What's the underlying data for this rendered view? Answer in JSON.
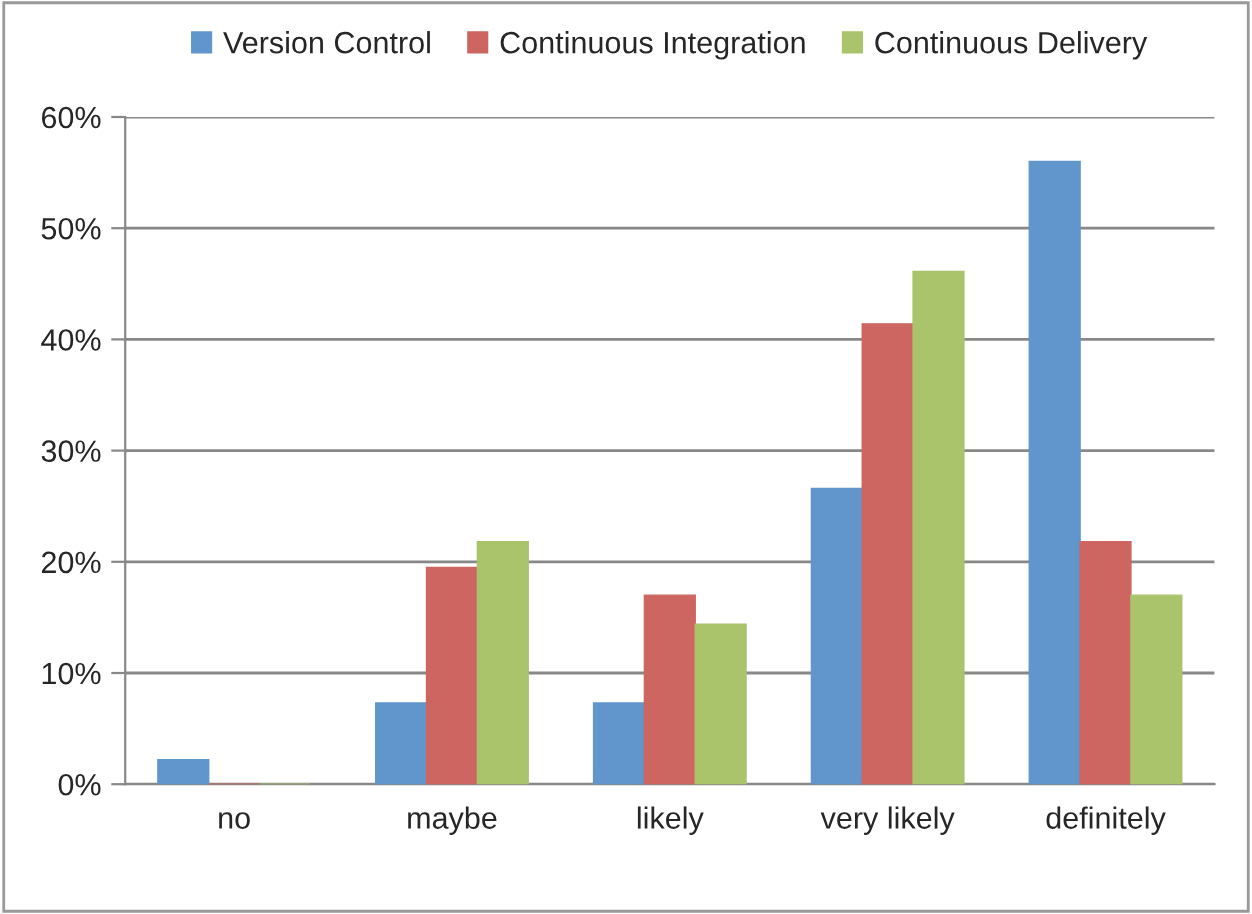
{
  "chart_data": {
    "type": "bar",
    "categories": [
      "no",
      "maybe",
      "likely",
      "very likely",
      "definitely"
    ],
    "series": [
      {
        "name": "Version Control",
        "color": "#6096cb",
        "values": [
          2.2,
          7.3,
          7.3,
          26.6,
          56.0
        ]
      },
      {
        "name": "Continuous Integration",
        "color": "#cd6660",
        "values": [
          0,
          19.5,
          17.0,
          41.4,
          21.8
        ]
      },
      {
        "name": "Continuous Delivery",
        "color": "#a9c46a",
        "values": [
          0,
          21.8,
          14.4,
          46.1,
          17.0
        ]
      }
    ],
    "ylim": [
      0,
      60
    ],
    "yticks": [
      {
        "value": 0,
        "label": "0%"
      },
      {
        "value": 10,
        "label": "10%"
      },
      {
        "value": 20,
        "label": "20%"
      },
      {
        "value": 30,
        "label": "30%"
      },
      {
        "value": 40,
        "label": "40%"
      },
      {
        "value": 50,
        "label": "50%"
      },
      {
        "value": 60,
        "label": "60%"
      }
    ],
    "grid": "y",
    "legend": "top"
  }
}
